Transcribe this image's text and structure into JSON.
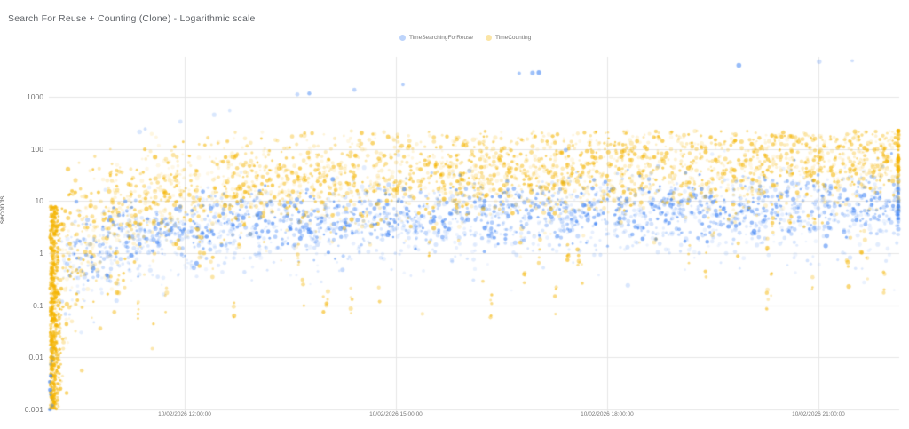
{
  "header": {
    "title": "Search For Reuse + Counting (Clone) - Logarithmic scale"
  },
  "legend": {
    "items": [
      {
        "label": "TimeSearchingForReuse",
        "color": "#4285F4"
      },
      {
        "label": "TimeCounting",
        "color": "#F4B400"
      }
    ]
  },
  "chart_data": {
    "type": "scatter",
    "title": "Search For Reuse + Counting (Clone) - Logarithmic scale",
    "xlabel": "",
    "ylabel": "seconds",
    "y_scale": "log",
    "grid": true,
    "legend_position": "top-center",
    "y_ticks": [
      "1000",
      "100",
      "10",
      "1",
      "0.1",
      "0.01",
      "0.001"
    ],
    "y_tick_values": [
      1000,
      100,
      10,
      1,
      0.1,
      0.01,
      0.001
    ],
    "y_range": [
      0.001,
      5000
    ],
    "x_ticks": [
      "10/02/2026 12:00:00",
      "10/02/2026 15:00:00",
      "10/02/2026 18:00:00",
      "10/02/2026 21:00:00"
    ],
    "x_tick_hours": [
      12,
      15,
      18,
      21
    ],
    "x_range_hours": [
      10.07,
      22.17
    ],
    "grid_color": "#e6e6e6",
    "series": [
      {
        "name": "TimeCounting",
        "color": "#F4B400",
        "count": 2900,
        "median_trend_hour_seconds": [
          [
            10.08,
            0.02
          ],
          [
            10.25,
            0.25
          ],
          [
            10.5,
            1.2
          ],
          [
            10.8,
            3.5
          ],
          [
            11.2,
            7
          ],
          [
            11.7,
            11
          ],
          [
            12.2,
            15
          ],
          [
            13,
            20
          ],
          [
            14,
            25
          ],
          [
            15.2,
            30
          ],
          [
            16.5,
            35
          ],
          [
            18,
            41
          ],
          [
            19.5,
            48
          ],
          [
            21,
            55
          ],
          [
            22.15,
            62
          ]
        ],
        "sigma_log10_trend": [
          [
            10.08,
            1.1
          ],
          [
            10.4,
            0.85
          ],
          [
            10.9,
            0.6
          ],
          [
            11.6,
            0.5
          ],
          [
            13,
            0.47
          ],
          [
            22.2,
            0.44
          ]
        ],
        "start_column": {
          "count": 600,
          "hour": 10.09,
          "hour_spread": 0.07,
          "log10_min": -3,
          "log10_max": 0.9
        },
        "low_streaks": {
          "count": 45,
          "hour_min": 10.3,
          "hour_max": 22.1,
          "points_per_streak_max": 5,
          "drop_decades_min": 0.7,
          "drop_decades_max": 2.3,
          "floor_seconds": 0.01
        },
        "high_outliers_hour_seconds_alpha": [
          [
            13.7,
            180,
            0.25
          ],
          [
            16.1,
            150,
            0.2
          ],
          [
            20.3,
            140,
            0.2
          ]
        ],
        "right_edge_extra": 80,
        "max_seconds": 220
      },
      {
        "name": "TimeSearchingForReuse",
        "color": "#4285F4",
        "count": 2400,
        "median_trend_hour_seconds": [
          [
            10.25,
            0.5
          ],
          [
            10.5,
            0.9
          ],
          [
            10.8,
            1.5
          ],
          [
            11.2,
            2.2
          ],
          [
            12,
            2.9
          ],
          [
            13,
            4
          ],
          [
            14.5,
            5
          ],
          [
            16,
            5.8
          ],
          [
            17.5,
            6.5
          ],
          [
            19,
            7.2
          ],
          [
            20.5,
            7.9
          ],
          [
            22.15,
            8.6
          ]
        ],
        "sigma_log10_trend": [
          [
            10.25,
            0.4
          ],
          [
            11,
            0.33
          ],
          [
            12.5,
            0.3
          ],
          [
            22.2,
            0.32
          ]
        ],
        "faint_subband": {
          "fraction": 0.2,
          "drop_decades_min": 0.25,
          "drop_decades_max": 0.75
        },
        "start_lows": {
          "count": 12,
          "hour": 10.08,
          "hour_spread": 0.05,
          "log10_min": -3,
          "log10_max": -1.8,
          "on_axis_points": 2
        },
        "high_outliers_hour_seconds_alpha": [
          [
            11.36,
            210,
            0.2
          ],
          [
            11.44,
            240,
            0.25
          ],
          [
            11.94,
            330,
            0.2
          ],
          [
            12.42,
            450,
            0.2
          ],
          [
            12.64,
            540,
            0.2
          ],
          [
            13.6,
            1100,
            0.3
          ],
          [
            13.77,
            1150,
            0.5
          ],
          [
            14.41,
            1350,
            0.35
          ],
          [
            15.1,
            1700,
            0.4
          ],
          [
            16.75,
            2800,
            0.45
          ],
          [
            16.94,
            2850,
            0.5
          ],
          [
            17.03,
            2900,
            0.6
          ],
          [
            19.87,
            4000,
            0.55
          ],
          [
            21.01,
            4700,
            0.25
          ],
          [
            21.48,
            4900,
            0.25
          ]
        ],
        "right_edge_extra": 60,
        "max_seconds": 5000
      }
    ]
  }
}
